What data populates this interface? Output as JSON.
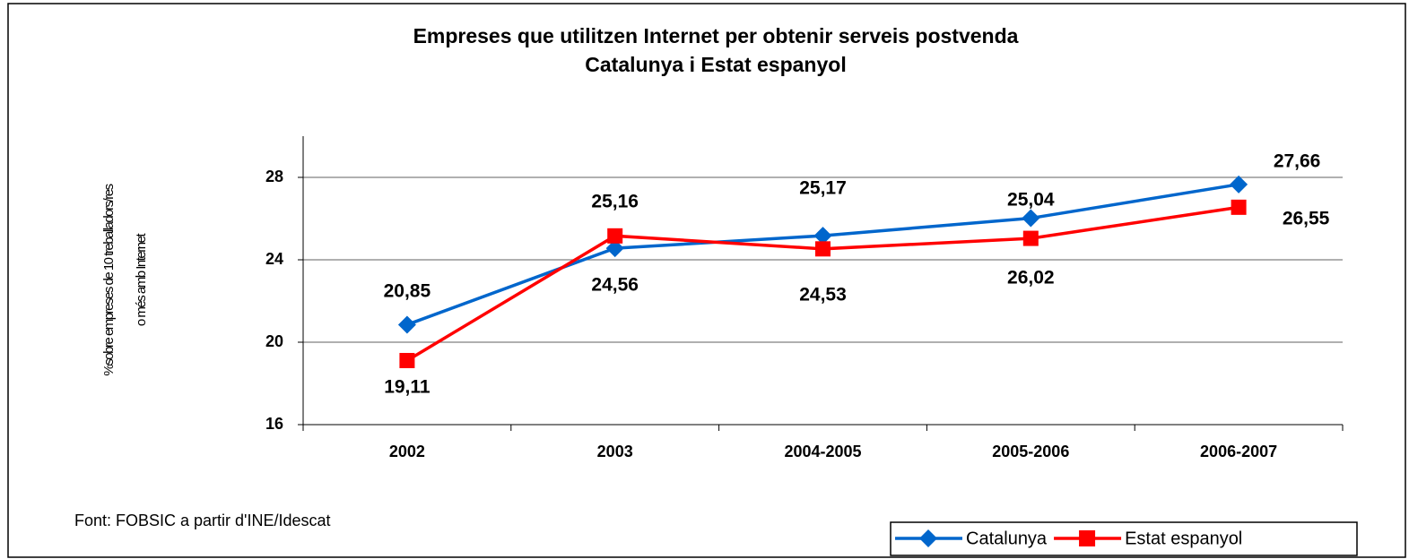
{
  "chart_data": {
    "type": "line",
    "title": [
      "Empreses que utilitzen Internet per obtenir serveis postvenda",
      "Catalunya i Estat espanyol"
    ],
    "y_label": [
      "%sobre empreses de 10 treballadors/res",
      "o més amb Internet"
    ],
    "source": "Font: FOBSIC a partir d'INE/Idescat",
    "categories": [
      "2002",
      "2003",
      "2004-2005",
      "2005-2006",
      "2006-2007"
    ],
    "series": [
      {
        "name": "Catalunya",
        "color": "#0066cc",
        "marker": "diamond",
        "values": [
          20.85,
          24.56,
          25.17,
          26.02,
          27.66
        ],
        "value_labels": [
          "20,85",
          "24,56",
          "25,17",
          "26,02",
          "27,66"
        ]
      },
      {
        "name": "Estat espanyol",
        "color": "#ff0000",
        "marker": "square",
        "values": [
          19.11,
          25.16,
          24.53,
          25.04,
          26.55
        ],
        "value_labels": [
          "19,11",
          "25,16",
          "24,53",
          "25,04",
          "26,55"
        ]
      }
    ],
    "ylim": [
      16,
      30
    ],
    "yticks": [
      16,
      20,
      24,
      28
    ],
    "grid": true,
    "legend": "bottom-right"
  }
}
